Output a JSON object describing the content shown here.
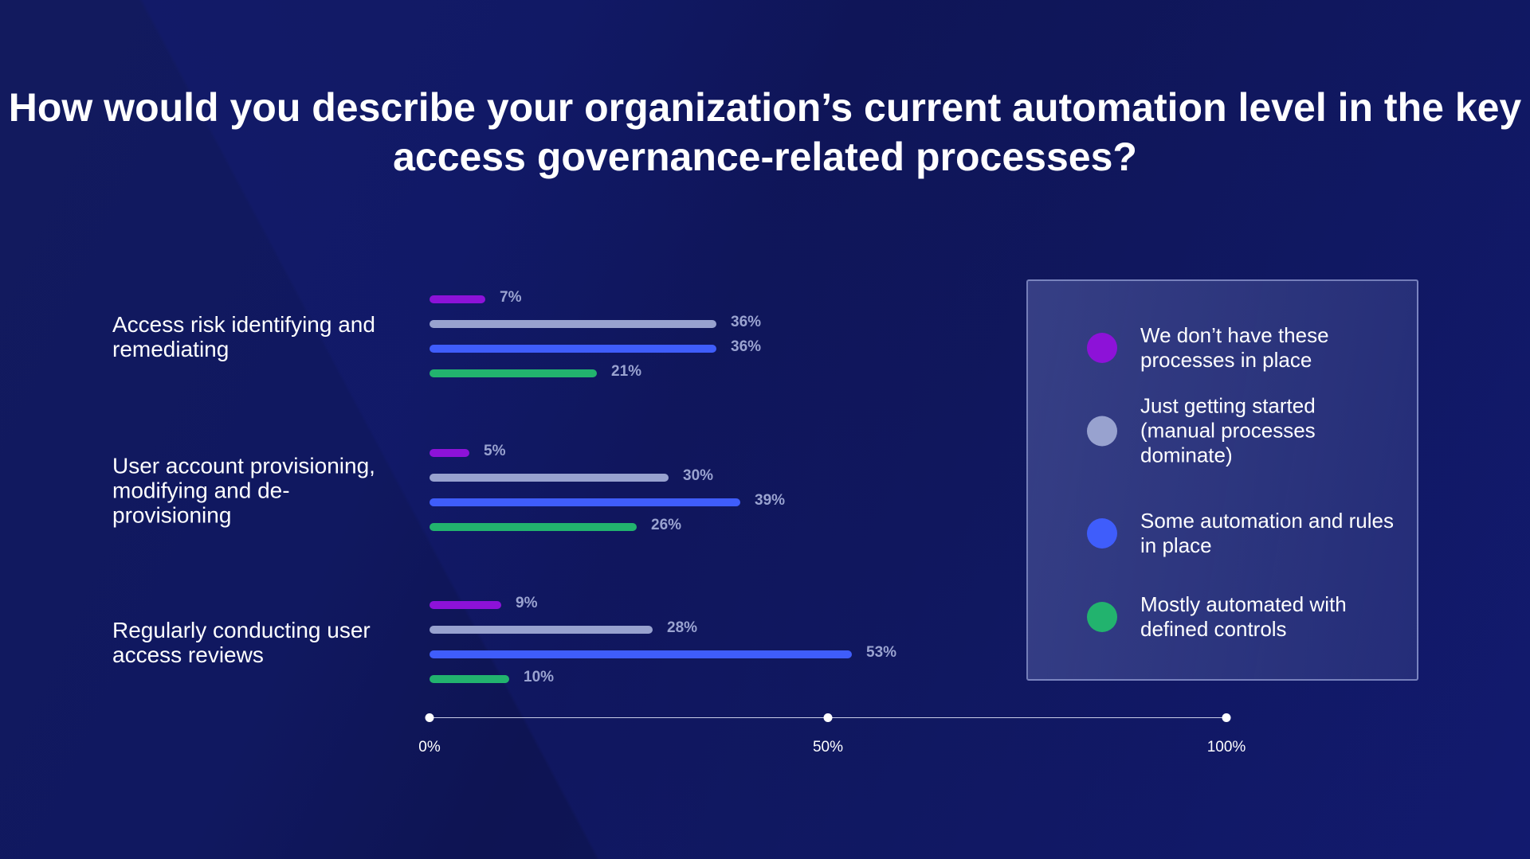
{
  "chart_data": {
    "type": "bar",
    "orientation": "horizontal",
    "title": "How would you describe your organization’s current automation level in the key access governance-related processes?",
    "categories": [
      "Access risk identifying and remediating",
      "User account provisioning, modifying and de-provisioning",
      "Regularly conducting user access reviews"
    ],
    "series": [
      {
        "name": "We don’t have these processes in place",
        "color": "#8d12d8",
        "values": [
          7,
          5,
          9
        ]
      },
      {
        "name": "Just getting started (manual processes dominate)",
        "color": "#98a2cf",
        "values": [
          36,
          30,
          28
        ]
      },
      {
        "name": "Some automation and rules in place",
        "color": "#3f5dfb",
        "values": [
          36,
          39,
          53
        ]
      },
      {
        "name": "Mostly automated with defined controls",
        "color": "#22b36e",
        "values": [
          21,
          26,
          10
        ]
      }
    ],
    "xlim": [
      0,
      100
    ],
    "xticks": [
      "0%",
      "50%",
      "100%"
    ],
    "legend_placement": "right",
    "grid": false
  }
}
